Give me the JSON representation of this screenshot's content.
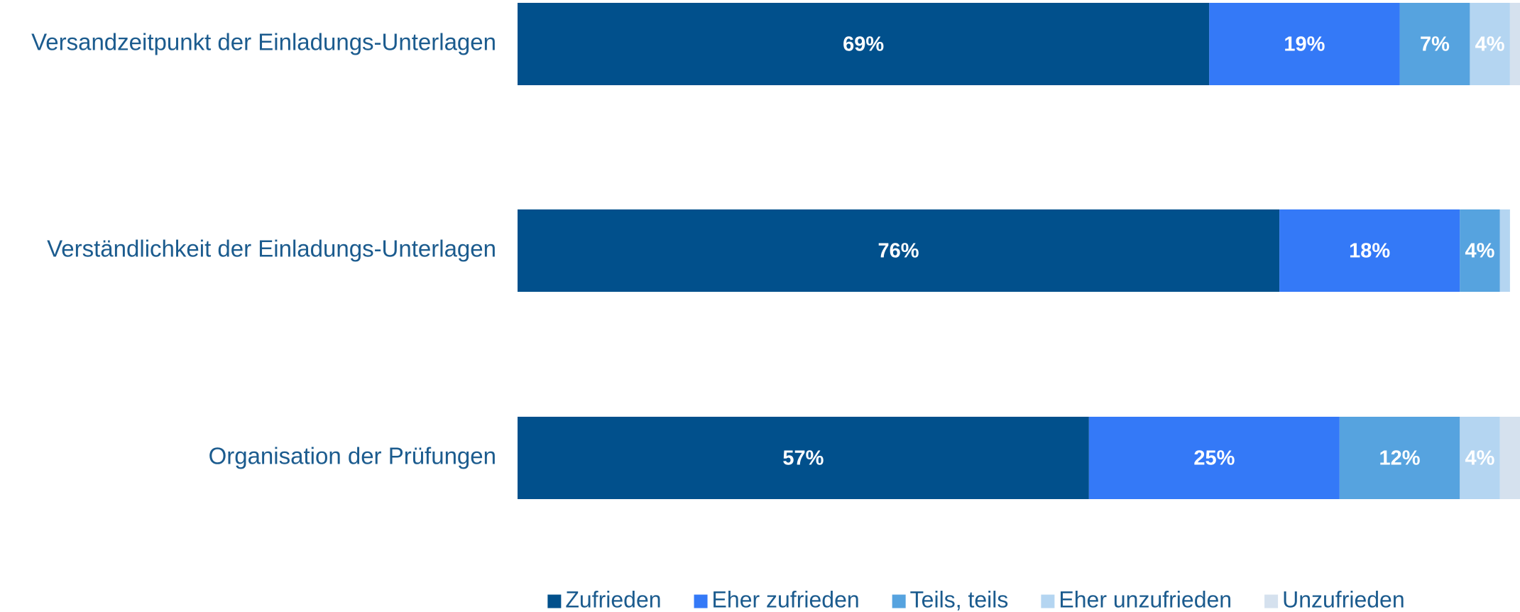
{
  "chart_data": {
    "type": "bar",
    "orientation": "horizontal",
    "stacked": true,
    "categories": [
      "Versandzeitpunkt der Einladungs-Unterlagen",
      "Verständlichkeit der Einladungs-Unterlagen",
      "Organisation der Prüfungen"
    ],
    "series": [
      {
        "name": "Zufrieden",
        "color": "#01508c",
        "values": [
          69,
          76,
          57
        ],
        "value_labels": [
          "69%",
          "76%",
          "57%"
        ]
      },
      {
        "name": "Eher zufrieden",
        "color": "#3479f7",
        "values": [
          19,
          18,
          25
        ],
        "value_labels": [
          "19%",
          "18%",
          "25%"
        ]
      },
      {
        "name": "Teils, teils",
        "color": "#56a3df",
        "values": [
          7,
          4,
          12
        ],
        "value_labels": [
          "7%",
          "4%",
          "12%"
        ]
      },
      {
        "name": "Eher unzufrieden",
        "color": "#b4d5f1",
        "values": [
          4,
          1,
          4
        ],
        "value_labels": [
          "4%",
          null,
          "4%"
        ]
      },
      {
        "name": "Unzufrieden",
        "color": "#d5e1ee",
        "values": [
          1,
          0,
          2
        ],
        "value_labels": [
          null,
          null,
          null
        ]
      }
    ],
    "xlim": [
      0,
      100
    ],
    "legend": "bottom"
  }
}
